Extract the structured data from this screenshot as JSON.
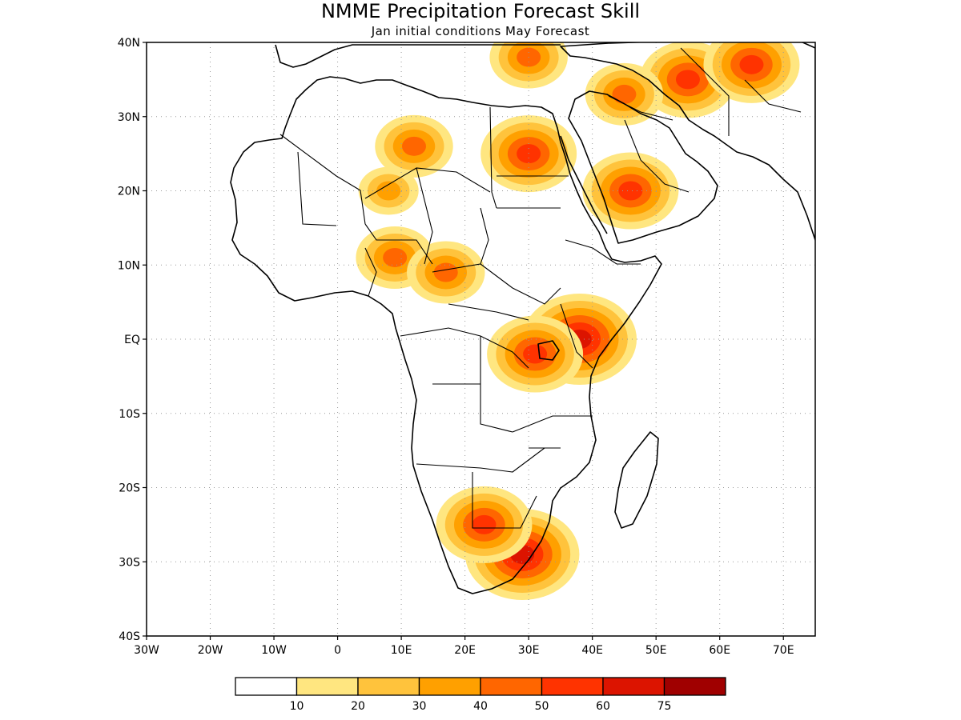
{
  "title": "NMME Precipitation Forecast Skill",
  "subtitle": "Jan initial conditions  May Forecast",
  "map": {
    "lat_ticks": [
      "40N",
      "30N",
      "20N",
      "10N",
      "EQ",
      "10S",
      "20S",
      "30S",
      "40S"
    ],
    "lon_ticks": [
      "30W",
      "20W",
      "10W",
      "0",
      "10E",
      "20E",
      "30E",
      "40E",
      "50E",
      "60E",
      "70E"
    ],
    "lon_range": [
      -30,
      75
    ],
    "lat_range": [
      -40,
      40
    ],
    "grid": true
  },
  "colorbar": {
    "labels": [
      "10",
      "20",
      "30",
      "40",
      "50",
      "60",
      "75"
    ],
    "colors": [
      "#ffffff",
      "#ffe680",
      "#ffc33c",
      "#ffa000",
      "#ff6600",
      "#ff3300",
      "#dc1400",
      "#a00000"
    ]
  },
  "skill_regions": [
    {
      "lon": 38,
      "lat": 0,
      "level": 6
    },
    {
      "lon": 31,
      "lat": -2,
      "level": 5
    },
    {
      "lon": 30,
      "lat": 25,
      "level": 5
    },
    {
      "lon": 46,
      "lat": 20,
      "level": 5
    },
    {
      "lon": 55,
      "lat": 35,
      "level": 5
    },
    {
      "lon": 65,
      "lat": 37,
      "level": 5
    },
    {
      "lon": 29,
      "lat": -29,
      "level": 6
    },
    {
      "lon": 23,
      "lat": -25,
      "level": 5
    },
    {
      "lon": 12,
      "lat": 26,
      "level": 4
    },
    {
      "lon": 9,
      "lat": 11,
      "level": 4
    },
    {
      "lon": 17,
      "lat": 9,
      "level": 4
    },
    {
      "lon": 45,
      "lat": 33,
      "level": 4
    },
    {
      "lon": 8,
      "lat": 20,
      "level": 3
    },
    {
      "lon": 30,
      "lat": 38,
      "level": 4
    }
  ]
}
